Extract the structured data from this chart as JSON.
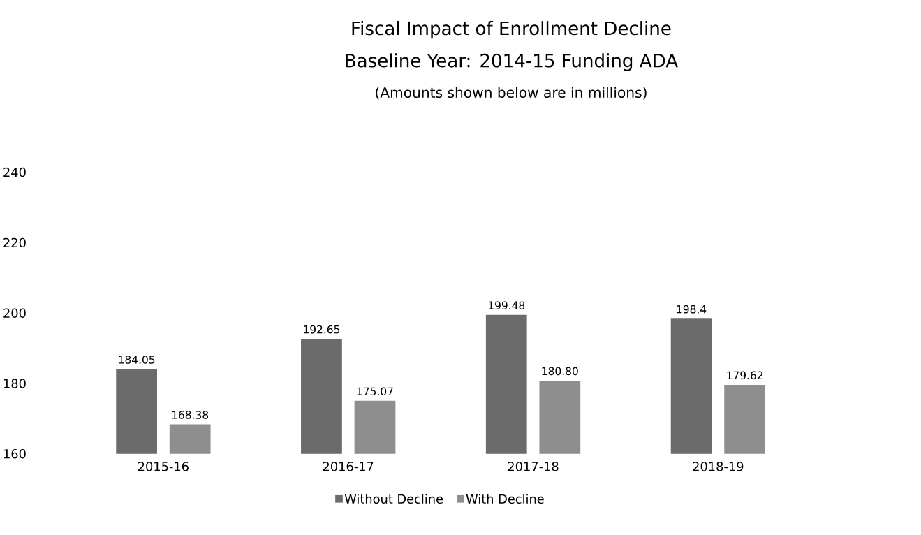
{
  "chart_data": {
    "type": "bar",
    "title": "Fiscal Impact of Enrollment Decline",
    "subtitle": "Baseline Year:  2014-15 Funding ADA",
    "annotations": [
      "(Amounts shown below are in millions)"
    ],
    "categories": [
      "2015-16",
      "2016-17",
      "2017-18",
      "2018-19"
    ],
    "series": [
      {
        "name": "Without Decline",
        "color": "#6b6b6b",
        "values": [
          184.05,
          192.65,
          199.48,
          198.4
        ],
        "value_labels": [
          "184.05",
          "192.65",
          "199.48",
          "198.4"
        ]
      },
      {
        "name": "With Decline",
        "color": "#8e8e8e",
        "values": [
          168.38,
          175.07,
          180.8,
          179.62
        ],
        "value_labels": [
          "168.38",
          "175.07",
          "180.80",
          "179.62"
        ]
      }
    ],
    "ylim": [
      160,
      240
    ],
    "yticks": [
      160,
      180,
      200,
      220,
      240
    ],
    "grid": false,
    "legend": "bottom"
  }
}
